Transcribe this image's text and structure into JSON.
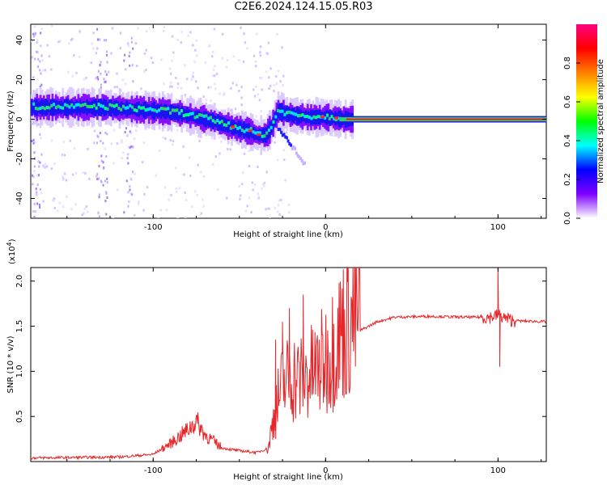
{
  "title": "C2E6.2024.124.15.05.R03",
  "chart_data": [
    {
      "type": "heatmap",
      "xlabel": "Height of straight line (km)",
      "ylabel": "Frequency (Hz)",
      "xlim": [
        -171,
        128
      ],
      "ylim": [
        -50,
        48
      ],
      "xticks": [
        -100,
        0,
        100
      ],
      "yticks": [
        -40,
        -20,
        0,
        20,
        40
      ],
      "colorbar": {
        "label": "Normalized spectral amplitude",
        "range": [
          0,
          1
        ],
        "ticks": [
          "0.0",
          "0.2",
          "0.4",
          "0.6",
          "0.8"
        ],
        "colors": [
          "#ffffff",
          "#7f00ff",
          "#0000ff",
          "#00ffff",
          "#00ff00",
          "#ffff00",
          "#ff7f00",
          "#ff0000",
          "#ff0080"
        ]
      },
      "ridge": {
        "x": [
          -170,
          -150,
          -130,
          -110,
          -95,
          -85,
          -75,
          -65,
          -55,
          -45,
          -40,
          -35,
          -32,
          -28,
          -20,
          -10,
          0,
          10,
          30,
          60,
          100,
          128
        ],
        "freq_hz": [
          6,
          6,
          6,
          5,
          4,
          3,
          1,
          -1,
          -4,
          -6,
          -8,
          -8,
          -4,
          4,
          2,
          1,
          1,
          0,
          0,
          0,
          0,
          0
        ]
      }
    },
    {
      "type": "line",
      "xlabel": "Height of straight line (km)",
      "ylabel": "SNR (10 * v/v)",
      "multiplier": "(x10",
      "multiplier_exp": "4",
      "xlim": [
        -171,
        128
      ],
      "ylim": [
        0,
        2.15
      ],
      "xticks": [
        -100,
        0,
        100
      ],
      "yticks": [
        0.5,
        1.0,
        1.5,
        2.0
      ],
      "ytick_labels": [
        "0.5",
        "1.0",
        "1.5",
        "2.0"
      ],
      "color": "#e8262a",
      "envelope": {
        "x": [
          -171,
          -120,
          -100,
          -90,
          -80,
          -75,
          -70,
          -60,
          -50,
          -40,
          -33,
          -30,
          -25,
          -20,
          -15,
          -10,
          -5,
          0,
          10,
          20,
          30,
          40,
          60,
          80,
          95,
          100,
          101,
          105,
          110,
          128
        ],
        "y": [
          0.04,
          0.05,
          0.08,
          0.2,
          0.35,
          0.45,
          0.3,
          0.15,
          0.12,
          0.1,
          0.15,
          0.45,
          0.75,
          0.85,
          0.8,
          0.85,
          0.9,
          1.0,
          1.3,
          1.45,
          1.55,
          1.6,
          1.61,
          1.6,
          1.6,
          1.62,
          1.62,
          1.58,
          1.56,
          1.55
        ]
      },
      "spikes": [
        {
          "x": -29,
          "y": 1.35
        },
        {
          "x": -25,
          "y": 1.55
        },
        {
          "x": -21,
          "y": 1.7
        },
        {
          "x": -13,
          "y": 1.85
        },
        {
          "x": 100,
          "y": 2.15
        },
        {
          "x": 101,
          "y": 1.05
        }
      ]
    }
  ]
}
